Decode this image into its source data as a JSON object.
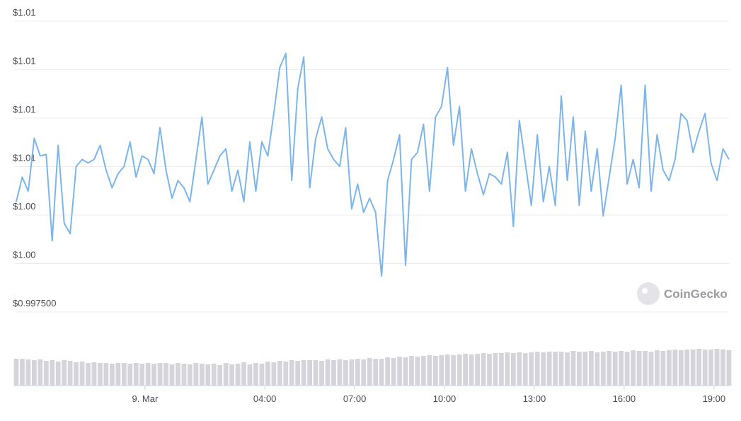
{
  "chart_data": {
    "type": "line",
    "watermark": "CoinGecko",
    "color": "#7cb5ec",
    "volume_color": "#d4d4da",
    "grid": true,
    "ylim": [
      0.9975,
      1.0125
    ],
    "yticks": [
      {
        "value": 0.9975,
        "label": "$0.997500"
      },
      {
        "value": 1.0,
        "label": "$1.00"
      },
      {
        "value": 1.0025,
        "label": "$1.00"
      },
      {
        "value": 1.005,
        "label": "$1.01"
      },
      {
        "value": 1.0075,
        "label": "$1.01"
      },
      {
        "value": 1.01,
        "label": "$1.01"
      },
      {
        "value": 1.0125,
        "label": "$1.01"
      }
    ],
    "xlim": [
      -4.37,
      19.5
    ],
    "xticks": [
      {
        "value": 0,
        "label": "9. Mar"
      },
      {
        "value": 4,
        "label": "04:00"
      },
      {
        "value": 7,
        "label": "07:00"
      },
      {
        "value": 10,
        "label": "10:00"
      },
      {
        "value": 13,
        "label": "13:00"
      },
      {
        "value": 16,
        "label": "16:00"
      },
      {
        "value": 19,
        "label": "19:00"
      }
    ],
    "x": [
      -4.3,
      -4.1,
      -3.9,
      -3.7,
      -3.5,
      -3.3,
      -3.1,
      -2.9,
      -2.7,
      -2.5,
      -2.3,
      -2.1,
      -1.9,
      -1.7,
      -1.5,
      -1.3,
      -1.1,
      -0.9,
      -0.7,
      -0.5,
      -0.3,
      -0.1,
      0.1,
      0.3,
      0.5,
      0.7,
      0.9,
      1.1,
      1.3,
      1.5,
      1.7,
      1.9,
      2.1,
      2.3,
      2.5,
      2.7,
      2.9,
      3.1,
      3.3,
      3.5,
      3.7,
      3.9,
      4.1,
      4.3,
      4.5,
      4.7,
      4.9,
      5.1,
      5.3,
      5.5,
      5.7,
      5.9,
      6.1,
      6.3,
      6.5,
      6.7,
      6.9,
      7.1,
      7.3,
      7.5,
      7.7,
      7.9,
      8.1,
      8.3,
      8.5,
      8.7,
      8.9,
      9.1,
      9.3,
      9.5,
      9.7,
      9.9,
      10.1,
      10.3,
      10.5,
      10.7,
      10.9,
      11.1,
      11.3,
      11.5,
      11.7,
      11.9,
      12.1,
      12.3,
      12.5,
      12.7,
      12.9,
      13.1,
      13.3,
      13.5,
      13.7,
      13.9,
      14.1,
      14.3,
      14.5,
      14.7,
      14.9,
      15.1,
      15.3,
      15.5,
      15.7,
      15.9,
      16.1,
      16.3,
      16.5,
      16.7,
      16.9,
      17.1,
      17.3,
      17.5,
      17.7,
      17.9,
      18.1,
      18.3,
      18.5,
      18.7,
      18.9,
      19.1,
      19.3,
      19.5
    ],
    "values": [
      1.00319,
      1.00446,
      1.00373,
      1.00646,
      1.00555,
      1.00563,
      1.00118,
      1.0061,
      1.00209,
      1.00154,
      1.00501,
      1.00537,
      1.00519,
      1.00537,
      1.0061,
      1.00482,
      1.00391,
      1.00464,
      1.00501,
      1.00628,
      1.00446,
      1.00555,
      1.00537,
      1.00464,
      1.00701,
      1.00482,
      1.00337,
      1.00428,
      1.00391,
      1.00319,
      1.00537,
      1.00756,
      1.0041,
      1.00482,
      1.00555,
      1.00592,
      1.00373,
      1.00482,
      1.00319,
      1.00628,
      1.00373,
      1.00628,
      1.00555,
      1.00774,
      1.01011,
      1.01084,
      1.00428,
      1.00902,
      1.01066,
      1.00391,
      1.00646,
      1.00756,
      1.00592,
      1.00537,
      1.00501,
      1.00701,
      1.00282,
      1.0041,
      1.00264,
      1.00337,
      1.00264,
      0.99936,
      1.00428,
      1.00537,
      1.00665,
      0.99991,
      1.00537,
      1.00574,
      1.00719,
      1.00373,
      1.00756,
      1.0081,
      1.01011,
      1.0061,
      1.0081,
      1.00373,
      1.00592,
      1.00464,
      1.00355,
      1.00464,
      1.00446,
      1.0041,
      1.00574,
      1.00191,
      1.00738,
      1.00519,
      1.003,
      1.00665,
      1.00319,
      1.00501,
      1.003,
      1.00865,
      1.00428,
      1.00756,
      1.003,
      1.00683,
      1.00373,
      1.00592,
      1.00246,
      1.00446,
      1.00646,
      1.0092,
      1.0041,
      1.00537,
      1.00391,
      1.0092,
      1.00373,
      1.00665,
      1.00482,
      1.00428,
      1.00537,
      1.00774,
      1.00738,
      1.00574,
      1.00683,
      1.00774,
      1.00519,
      1.00428,
      1.00592,
      1.00537
    ],
    "volume": [
      38,
      38,
      37,
      36,
      37,
      35,
      36,
      34,
      36,
      35,
      33,
      34,
      32,
      33,
      32,
      32,
      31,
      32,
      32,
      31,
      32,
      31,
      32,
      31,
      32,
      32,
      30,
      32,
      31,
      30,
      32,
      31,
      30,
      31,
      29,
      32,
      30,
      31,
      33,
      30,
      32,
      31,
      34,
      33,
      35,
      34,
      36,
      35,
      36,
      36,
      36,
      35,
      37,
      36,
      37,
      36,
      37,
      38,
      37,
      39,
      38,
      38,
      40,
      39,
      41,
      40,
      42,
      41,
      42,
      43,
      42,
      43,
      44,
      43,
      44,
      45,
      44,
      45,
      46,
      45,
      46,
      46,
      47,
      46,
      47,
      46,
      47,
      48,
      47,
      48,
      48,
      48,
      47,
      49,
      48,
      48,
      49,
      47,
      48,
      49,
      48,
      49,
      48,
      50,
      49,
      49,
      48,
      50,
      49,
      50,
      51,
      50,
      51,
      51,
      52,
      51,
      51,
      52,
      51,
      50
    ]
  }
}
